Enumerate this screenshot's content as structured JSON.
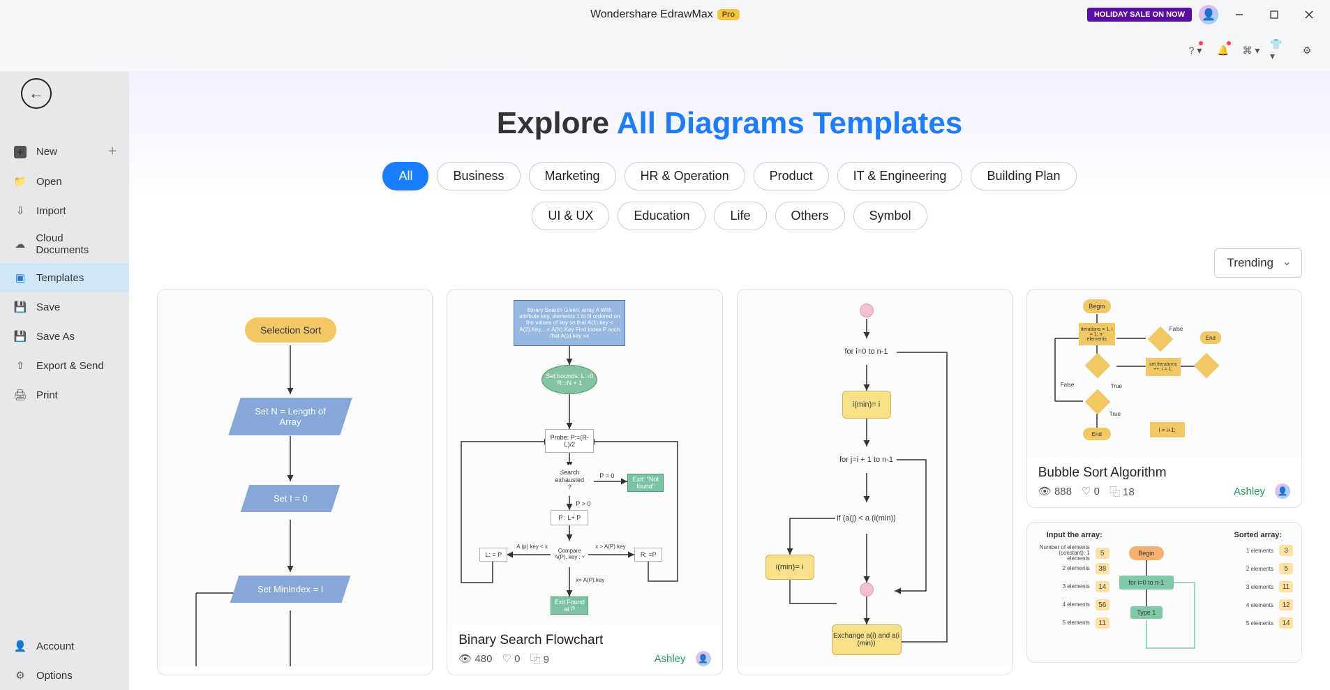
{
  "app": {
    "title": "Wondershare EdrawMax",
    "badge": "Pro",
    "holiday": "HOLIDAY SALE ON NOW"
  },
  "sidebar": {
    "items": [
      {
        "label": "New",
        "icon": "plus-square",
        "trail": "+"
      },
      {
        "label": "Open",
        "icon": "folder"
      },
      {
        "label": "Import",
        "icon": "download"
      },
      {
        "label": "Cloud Documents",
        "icon": "cloud"
      },
      {
        "label": "Templates",
        "icon": "templates",
        "active": true
      },
      {
        "label": "Save",
        "icon": "save"
      },
      {
        "label": "Save As",
        "icon": "save-as"
      },
      {
        "label": "Export & Send",
        "icon": "export"
      },
      {
        "label": "Print",
        "icon": "print"
      }
    ],
    "footer": [
      {
        "label": "Account",
        "icon": "account"
      },
      {
        "label": "Options",
        "icon": "gear"
      }
    ]
  },
  "headline": {
    "lead": "Explore ",
    "accent": "All Diagrams Templates"
  },
  "filters": {
    "row1": [
      "All",
      "Business",
      "Marketing",
      "HR & Operation",
      "Product",
      "IT & Engineering",
      "Building Plan"
    ],
    "row2": [
      "UI & UX",
      "Education",
      "Life",
      "Others",
      "Symbol"
    ],
    "active": "All"
  },
  "sort": "Trending",
  "cards": [
    {
      "thumb_height": 540,
      "flow": {
        "title": "Selection Sort",
        "n1": "Set N =\nLength of Array",
        "n2": "Set I = 0",
        "n3": "Set MinIndex = I",
        "colors": {
          "rounded": "#f2c864",
          "parallelogram": "#87a7d8"
        }
      }
    },
    {
      "title": "Binary Search Flowchart",
      "views": "480",
      "likes": "0",
      "uses": "9",
      "author": "Ashley",
      "thumb_height": 480,
      "bs": {
        "header": "Binary Search\nGiven: array A With attribute key,\nelements 1 to N ordered on the values of key\nso that A(1).key < A(2).Key,...< A(N).Key\nFind index P such that A(p).key =x",
        "bounds": "Set bounds:\nL:=0\nR:=N + 1",
        "probe": "Probe:\nP:=(R-L)/2",
        "search": "Search\nexhausted\n?",
        "p0": "P = 0",
        "pn0": "P > 0",
        "exit_nf": "Exit:\n\"Not found\"",
        "p1p": "P : L+ P",
        "compare": "Compare\nA(P). key : x",
        "left": "L: = P",
        "left_cond": "A (p) key < x",
        "right": "R: =P",
        "right_cond": "x > A(P) key",
        "eq": "x= A(P).key",
        "exit_found": "Exit\nFound at P",
        "colors": {
          "header_bg": "#96b7e0",
          "header_border": "#4a6fa5",
          "bounds_bg": "#83c2a2",
          "bounds_border": "#4a9270",
          "probe_border": "#b0b0b0",
          "decision_border": "#c0c0c0",
          "exit_nf_bg": "#7ac3a5",
          "exit_nf_border": "#4a9270",
          "exit_found_bg": "#7ac3a5",
          "exit_found_border": "#4a9270"
        }
      }
    },
    {
      "thumb_height": 540,
      "fc3": {
        "start_color": "#f2c0d2",
        "loop1": "for i=0 to n-1",
        "loop1_color": "#e8c4d9",
        "assign1": "i(min)= i",
        "assign1_color": "#f8e088",
        "loop2": "for j=i + 1 to n-1",
        "loop2_color": "#e8c4d9",
        "decision": "if (a(j) < a (i(min))",
        "decision_color": "#f2c49c",
        "assign2": "i(min)= i",
        "assign2_color": "#f8e088",
        "end_dot_color": "#f2c0d2",
        "exchange": "Exchange\na(i) and a(i (min))",
        "exchange_color": "#f8e088"
      }
    },
    {
      "title": "Bubble Sort Algorithm",
      "views": "888",
      "likes": "0",
      "uses": "18",
      "author": "Ashley",
      "thumb_height": 240,
      "bubble": {
        "begin": "Begin",
        "end": "End",
        "iter_label": "iterations = 1,\ni = 1;\nn-elements",
        "swap_label": "set iterations\n++;\ni = 1;",
        "inc_label": "i = i+1;",
        "true_label": "True",
        "false_label": "False",
        "colors": {
          "block": "#f2c864",
          "diamond": "#f2c864",
          "round": "#f2c864"
        }
      }
    },
    {
      "thumb_height": 200,
      "insertion": {
        "title_left": "Input the array:",
        "title_right": "Sorted array:",
        "left_rows": [
          {
            "label": "Number of elements\n(constant):\n1 elements",
            "val": "5"
          },
          {
            "label": "2 elements",
            "val": "38"
          },
          {
            "label": "3 elements",
            "val": "14"
          },
          {
            "label": "4 elements",
            "val": "56"
          },
          {
            "label": "5 elements",
            "val": "11"
          }
        ],
        "right_rows": [
          {
            "label": "1 elements",
            "val": "3"
          },
          {
            "label": "2 elements",
            "val": "5"
          },
          {
            "label": "3 elements",
            "val": "11"
          },
          {
            "label": "4 elements",
            "val": "12"
          },
          {
            "label": "5 elements",
            "val": "14"
          }
        ],
        "begin": "Begin",
        "loop": "for i=0 to n-1",
        "type": "Type 1",
        "colors": {
          "cell": "#ffe1a3",
          "begin": "#f5b06e",
          "loop": "#7fc9a8"
        }
      }
    }
  ]
}
